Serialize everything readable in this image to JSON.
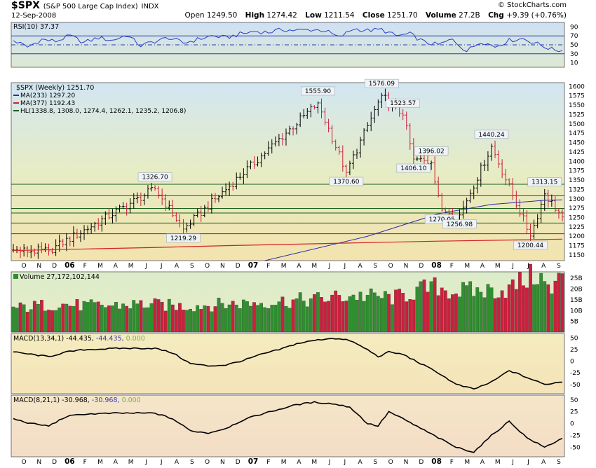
{
  "header": {
    "symbol": "$SPX",
    "description": "(S&P 500 Large Cap Index)",
    "exchange": "INDX",
    "date": "12-Sep-2008",
    "brand": "© StockCharts.com",
    "open_label": "Open",
    "open": "1249.50",
    "high_label": "High",
    "high": "1274.42",
    "low_label": "Low",
    "low": "1211.54",
    "close_label": "Close",
    "close": "1251.70",
    "volume_label": "Volume",
    "volume": "27.2B",
    "chg_label": "Chg",
    "chg": "+9.39 (+0.76%)"
  },
  "colors": {
    "up": "#2f8f2f",
    "down": "#cc1f3c",
    "price": "#000000",
    "ma233": "#2a2aa8",
    "ma377": "#d42020",
    "hline": "#1a5e1a",
    "rsi": "#2a3ec8"
  },
  "chart_data": [
    {
      "type": "line",
      "panel": "RSI",
      "label": "RSI(10) 37.37",
      "ylim": [
        0,
        100
      ],
      "ticks": [
        10,
        30,
        50,
        70,
        90
      ],
      "reference_lines": [
        30,
        50,
        70
      ],
      "series": [
        {
          "name": "RSI(10)",
          "x": [
            0,
            4,
            8,
            12,
            16,
            20,
            24,
            28,
            32,
            36,
            40,
            44,
            48,
            52,
            56,
            60,
            64,
            68,
            72,
            76,
            80,
            84,
            88,
            92,
            96,
            100,
            104,
            108,
            112,
            116,
            120,
            124,
            128,
            132,
            136,
            140,
            144,
            148,
            152,
            155
          ],
          "values": [
            60,
            45,
            62,
            58,
            70,
            55,
            66,
            60,
            72,
            48,
            58,
            66,
            54,
            62,
            70,
            66,
            74,
            80,
            78,
            84,
            82,
            84,
            82,
            66,
            86,
            82,
            84,
            70,
            74,
            56,
            50,
            62,
            36,
            58,
            46,
            60,
            64,
            52,
            40,
            37
          ]
        }
      ]
    },
    {
      "type": "candlestick",
      "panel": "price",
      "label": "$SPX (Weekly) 1251.70",
      "ylim": [
        1135,
        1610
      ],
      "ticks": [
        1150,
        1175,
        1200,
        1225,
        1250,
        1275,
        1300,
        1325,
        1350,
        1375,
        1400,
        1425,
        1450,
        1475,
        1500,
        1525,
        1550,
        1575,
        1600
      ],
      "x_months": [
        "O",
        "N",
        "D",
        "06",
        "F",
        "M",
        "A",
        "M",
        "J",
        "J",
        "A",
        "S",
        "O",
        "N",
        "D",
        "07",
        "F",
        "M",
        "A",
        "M",
        "J",
        "J",
        "A",
        "S",
        "O",
        "N",
        "D",
        "08",
        "F",
        "M",
        "A",
        "M",
        "J",
        "J",
        "A",
        "S"
      ],
      "key_points": [
        {
          "x": 10,
          "y": 1161,
          "label": ""
        },
        {
          "x": 40,
          "y": 1326.7,
          "label": "1326.70"
        },
        {
          "x": 48,
          "y": 1219.29,
          "label": "1219.29"
        },
        {
          "x": 86,
          "y": 1555.9,
          "label": "1555.90"
        },
        {
          "x": 94,
          "y": 1370.6,
          "label": "1370.60"
        },
        {
          "x": 104,
          "y": 1576.09,
          "label": "1576.09"
        },
        {
          "x": 110,
          "y": 1523.57,
          "label": "1523.57"
        },
        {
          "x": 113,
          "y": 1406.1,
          "label": "1406.10"
        },
        {
          "x": 118,
          "y": 1396.02,
          "label": "1396.02"
        },
        {
          "x": 121,
          "y": 1270.05,
          "label": "1270.05"
        },
        {
          "x": 126,
          "y": 1256.98,
          "label": "1256.98"
        },
        {
          "x": 135,
          "y": 1440.24,
          "label": "1440.24"
        },
        {
          "x": 146,
          "y": 1200.44,
          "label": "1200.44"
        },
        {
          "x": 150,
          "y": 1313.15,
          "label": "1313.15"
        },
        {
          "x": 155,
          "y": 1251.7,
          "label": ""
        }
      ],
      "series": [
        {
          "name": "MA(233) 1297.20",
          "x": [
            71,
            100,
            120,
            135,
            150,
            155
          ],
          "values": [
            1135,
            1200,
            1260,
            1285,
            1296,
            1297.2
          ]
        },
        {
          "name": "MA(377) 1192.43",
          "x": [
            0,
            20,
            40,
            60,
            80,
            100,
            120,
            140,
            155
          ],
          "values": [
            1162,
            1166,
            1170,
            1175,
            1179,
            1183,
            1187,
            1190,
            1192.43
          ]
        },
        {
          "name": "HL(1338.8, 1308.0, 1274.4, 1262.1, 1235.2, 1206.8)",
          "values": [
            1338.8,
            1308.0,
            1274.4,
            1262.1,
            1235.2,
            1206.8
          ]
        }
      ]
    },
    {
      "type": "bar",
      "panel": "volume",
      "label": "Volume 27,172,102,144",
      "ylim": [
        0,
        28
      ],
      "ticks_label": [
        "5B",
        "10B",
        "15B",
        "20B",
        "25B"
      ],
      "ticks": [
        5,
        10,
        15,
        20,
        25
      ],
      "x": [
        0,
        12,
        24,
        36,
        48,
        60,
        72,
        84,
        96,
        108,
        116,
        120,
        124,
        132,
        140,
        144,
        148,
        152,
        155
      ],
      "values": [
        11,
        13,
        12,
        13,
        12,
        13,
        14,
        15,
        17,
        16,
        20,
        21,
        19,
        19,
        20,
        24,
        27,
        18,
        27.2
      ]
    },
    {
      "type": "line",
      "panel": "macd1",
      "label": "MACD(13,34,1) -44.435, -44.435, 0.000",
      "ylim": [
        -70,
        60
      ],
      "ticks": [
        -50,
        -25,
        0,
        25,
        50
      ],
      "series": [
        {
          "name": "MACD(13,34,1)",
          "x": [
            0,
            5,
            10,
            15,
            20,
            30,
            40,
            45,
            50,
            55,
            60,
            65,
            70,
            75,
            80,
            85,
            90,
            95,
            100,
            103,
            106,
            110,
            115,
            120,
            125,
            130,
            135,
            140,
            145,
            150,
            155
          ],
          "values": [
            20,
            15,
            10,
            20,
            25,
            28,
            28,
            18,
            -5,
            -10,
            -8,
            2,
            15,
            25,
            38,
            45,
            50,
            45,
            25,
            10,
            20,
            15,
            -5,
            -25,
            -50,
            -60,
            -45,
            -20,
            -35,
            -50,
            -44
          ]
        }
      ]
    },
    {
      "type": "line",
      "panel": "macd2",
      "label": "MACD(8,21,1) -30.968, -30.968, 0.000",
      "ylim": [
        -70,
        60
      ],
      "ticks": [
        -50,
        -25,
        0,
        25,
        50
      ],
      "series": [
        {
          "name": "MACD(8,21,1)",
          "x": [
            0,
            5,
            10,
            15,
            20,
            30,
            40,
            45,
            50,
            55,
            60,
            65,
            70,
            75,
            80,
            85,
            90,
            95,
            100,
            103,
            106,
            110,
            115,
            120,
            125,
            130,
            135,
            140,
            145,
            150,
            155
          ],
          "values": [
            10,
            0,
            -5,
            15,
            20,
            22,
            22,
            10,
            -15,
            -20,
            -10,
            8,
            20,
            30,
            40,
            45,
            42,
            35,
            0,
            -5,
            25,
            10,
            -10,
            -30,
            -50,
            -60,
            -25,
            5,
            -30,
            -50,
            -31
          ]
        }
      ]
    }
  ]
}
